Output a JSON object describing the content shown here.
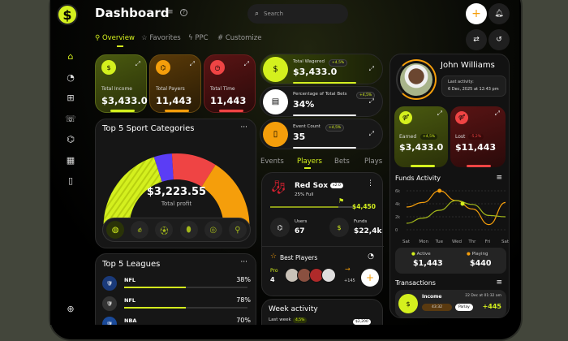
{
  "header": {
    "title": "Dashboard",
    "search_placeholder": "Search",
    "logo_text": "$"
  },
  "tabs": [
    {
      "label": "Overview",
      "active": true
    },
    {
      "label": "Favorites"
    },
    {
      "label": "PPC"
    },
    {
      "label": "Customize"
    }
  ],
  "stats": [
    {
      "label": "Total Income",
      "value": "$3,433.0",
      "color": "#d4f01e"
    },
    {
      "label": "Total Payers",
      "value": "11,443",
      "color": "#f59e0b"
    },
    {
      "label": "Total Time",
      "value": "11,443",
      "color": "#ef4444"
    }
  ],
  "metrics": [
    {
      "label": "Total Wagered",
      "badge": "+4,5%",
      "value": "$3,433.0"
    },
    {
      "label": "Percentage of Total Bets",
      "badge": "+4,5%",
      "value": "34%"
    },
    {
      "label": "Event Count",
      "badge": "+4,5%",
      "value": "35"
    }
  ],
  "categories": {
    "title": "Top 5 Sport Categories",
    "more": "···",
    "total": "$3,223.55",
    "total_label": "Total profit",
    "segments": [
      {
        "name": "Football",
        "share": 40,
        "color": "#d4f01e"
      },
      {
        "name": "Boxing",
        "share": 8,
        "color": "#5b3df5"
      },
      {
        "name": "Soccer",
        "share": 20,
        "color": "#ef4444"
      },
      {
        "name": "Rugby",
        "share": 32,
        "color": "#f59e0b"
      }
    ],
    "icons": [
      "volleyball-icon",
      "boxing-glove-icon",
      "soccer-ball-icon",
      "rugby-ball-icon",
      "basketball-icon",
      "ping-pong-icon"
    ]
  },
  "leagues": {
    "title": "Top 5 Leagues",
    "more": "···",
    "items": [
      {
        "name": "NFL",
        "percent": "38%",
        "fill": 38
      },
      {
        "name": "NFL",
        "percent": "78%",
        "fill": 78
      },
      {
        "name": "NBA",
        "percent": "70%",
        "fill": 70
      }
    ]
  },
  "mid_tabs": [
    {
      "label": "Events"
    },
    {
      "label": "Players",
      "active": true
    },
    {
      "label": "Bets"
    },
    {
      "label": "Plays"
    }
  ],
  "team": {
    "name": "Red Sox",
    "badge": "x2.0",
    "sub": "25% Full",
    "goal": "$4,450",
    "progress": 25,
    "users_label": "Users",
    "users": "67",
    "funds_label": "Funds",
    "funds": "$22,4k",
    "best_title": "Best Players",
    "pro_label": "Pro",
    "pro_count": "4",
    "more_count": "+145"
  },
  "week": {
    "title": "Week activity",
    "sub": "Last week",
    "badge": "4,5%",
    "value": "$2,200"
  },
  "profile": {
    "name": "John Williams",
    "activity_label": "Last activity:",
    "activity": "6 Dec, 2025 at 12:43 pm",
    "earned_label": "Earned",
    "earned_badge": "+4,5%",
    "earned": "$3,433.0",
    "lost_label": "Lost",
    "lost_badge": "-5,2%",
    "lost": "$11,443"
  },
  "funds": {
    "title": "Funds Activity",
    "active_label": "Active",
    "active": "$1,443",
    "playing_label": "Playing",
    "playing": "$440"
  },
  "chart_data": {
    "type": "line",
    "x": [
      "Sat",
      "Mon",
      "Tue",
      "Wed",
      "Thr",
      "Fri",
      "Sat"
    ],
    "yticks": [
      "0",
      "2k",
      "4k",
      "6k"
    ],
    "ylim": [
      0,
      6000
    ],
    "series": [
      {
        "name": "Playing",
        "color": "#f59e0b",
        "values": [
          3500,
          4200,
          6000,
          4500,
          3200,
          800,
          4200
        ]
      },
      {
        "name": "Active",
        "color": "#a3b81a",
        "values": [
          1000,
          1800,
          3000,
          4500,
          3900,
          2200,
          2000
        ]
      }
    ]
  },
  "transactions": {
    "title": "Transactions",
    "item": {
      "label": "Income",
      "date": "22 Dec at 01:32 am",
      "score": "43:32",
      "tag": "Parlay",
      "amount": "+445"
    }
  }
}
